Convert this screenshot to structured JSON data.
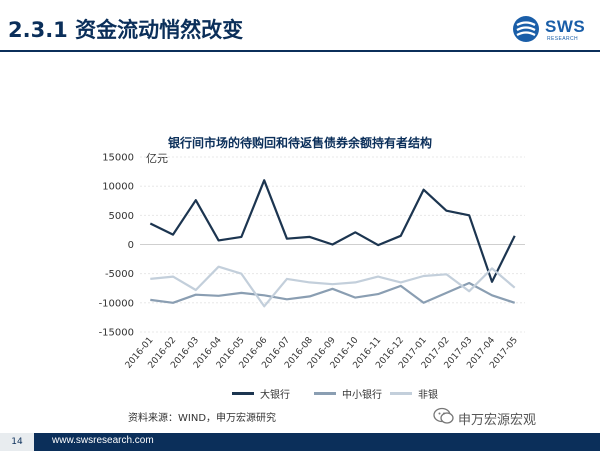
{
  "header": {
    "title": "2.3.1 资金流动悄然改变",
    "logo_text": "SWS",
    "logo_sub": "RESEARCH"
  },
  "chart_data": {
    "type": "line",
    "title": "银行间市场的待购回和待返售债券余额持有者结构",
    "unit": "亿元",
    "categories": [
      "2016-01",
      "2016-02",
      "2016-03",
      "2016-04",
      "2016-05",
      "2016-06",
      "2016-07",
      "2016-08",
      "2016-09",
      "2016-10",
      "2016-11",
      "2016-12",
      "2017-01",
      "2017-02",
      "2017-03",
      "2017-04",
      "2017-05"
    ],
    "y_ticks": [
      15000,
      10000,
      5000,
      0,
      -5000,
      -10000,
      -15000
    ],
    "ylim": [
      -15000,
      15000
    ],
    "grid": true,
    "legend_position": "bottom",
    "series": [
      {
        "name": "大银行",
        "color": "#1c3550",
        "values": [
          3600,
          1700,
          7600,
          700,
          1300,
          11000,
          1000,
          1300,
          0,
          2100,
          -100,
          1500,
          9400,
          5800,
          5000,
          -6400,
          1500
        ]
      },
      {
        "name": "中小银行",
        "color": "#8a9eb2",
        "values": [
          -9500,
          -10000,
          -8600,
          -8800,
          -8300,
          -8700,
          -9400,
          -8900,
          -7600,
          -9100,
          -8500,
          -7100,
          -10000,
          -8300,
          -6600,
          -8700,
          -10000
        ]
      },
      {
        "name": "非银",
        "color": "#c3cfdb",
        "values": [
          -5900,
          -5500,
          -7800,
          -3800,
          -5000,
          -10600,
          -5900,
          -6500,
          -6800,
          -6500,
          -5500,
          -6500,
          -5400,
          -5100,
          -8000,
          -4100,
          -7400
        ]
      }
    ]
  },
  "source": "资料来源：WIND，申万宏源研究",
  "footer": {
    "page": "14",
    "url": "www.swsresearch.com",
    "watermark": "申万宏源宏观"
  }
}
